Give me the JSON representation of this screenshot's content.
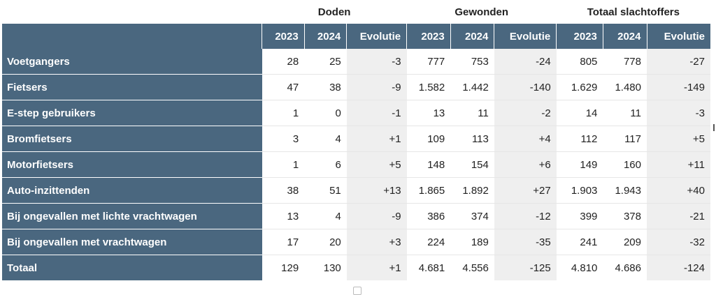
{
  "groups": {
    "doden": "Doden",
    "gewonden": "Gewonden",
    "totaal": "Totaal slachtoffers"
  },
  "subheaders": {
    "y1": "2023",
    "y2": "2024",
    "evo": "Evolutie"
  },
  "rows": [
    {
      "label": "Voetgangers",
      "values": [
        "28",
        "25",
        "-3",
        "777",
        "753",
        "-24",
        "805",
        "778",
        "-27"
      ]
    },
    {
      "label": "Fietsers",
      "values": [
        "47",
        "38",
        "-9",
        "1.582",
        "1.442",
        "-140",
        "1.629",
        "1.480",
        "-149"
      ]
    },
    {
      "label": "E-step gebruikers",
      "values": [
        "1",
        "0",
        "-1",
        "13",
        "11",
        "-2",
        "14",
        "11",
        "-3"
      ]
    },
    {
      "label": "Bromfietsers",
      "values": [
        "3",
        "4",
        "+1",
        "109",
        "113",
        "+4",
        "112",
        "117",
        "+5"
      ]
    },
    {
      "label": "Motorfietsers",
      "values": [
        "1",
        "6",
        "+5",
        "148",
        "154",
        "+6",
        "149",
        "160",
        "+11"
      ]
    },
    {
      "label": "Auto-inzittenden",
      "values": [
        "38",
        "51",
        "+13",
        "1.865",
        "1.892",
        "+27",
        "1.903",
        "1.943",
        "+40"
      ]
    },
    {
      "label": "Bij ongevallen met lichte vrachtwagen",
      "values": [
        "13",
        "4",
        "-9",
        "386",
        "374",
        "-12",
        "399",
        "378",
        "-21"
      ]
    },
    {
      "label": "Bij ongevallen met vrachtwagen",
      "values": [
        "17",
        "20",
        "+3",
        "224",
        "189",
        "-35",
        "241",
        "209",
        "-32"
      ]
    },
    {
      "label": "Totaal",
      "values": [
        "129",
        "130",
        "+1",
        "4.681",
        "4.556",
        "-125",
        "4.810",
        "4.686",
        "-124"
      ]
    }
  ],
  "colors": {
    "header_bg": "#4a677f",
    "evolutie_bg": "#efefef"
  }
}
